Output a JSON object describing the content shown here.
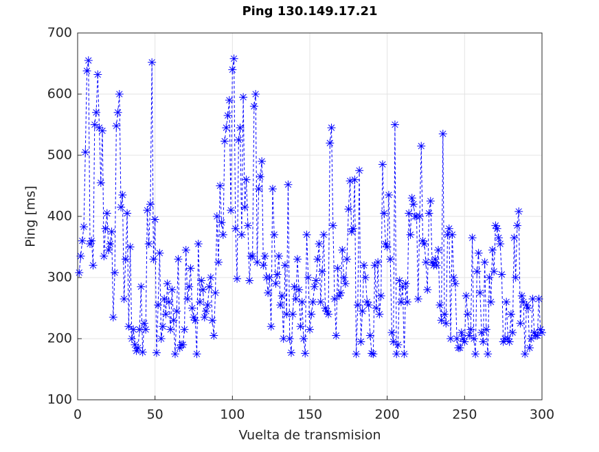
{
  "chart_data": {
    "type": "line",
    "title": "Ping 130.149.17.21",
    "xlabel": "Vuelta de transmision",
    "ylabel": "Ping [ms]",
    "xlim": [
      0,
      300
    ],
    "ylim": [
      100,
      700
    ],
    "xticks": [
      0,
      50,
      100,
      150,
      200,
      250,
      300
    ],
    "yticks": [
      100,
      200,
      300,
      400,
      500,
      600,
      700
    ],
    "grid": true,
    "series": [
      {
        "color": "#0000ff",
        "x": [
          1,
          2,
          3,
          4,
          5,
          6,
          7,
          8,
          9,
          10,
          11,
          12,
          13,
          14,
          15,
          16,
          17,
          18,
          19,
          20,
          21,
          22,
          23,
          24,
          25,
          26,
          27,
          28,
          29,
          30,
          31,
          32,
          33,
          34,
          35,
          36,
          37,
          38,
          39,
          40,
          41,
          42,
          43,
          44,
          45,
          46,
          47,
          48,
          49,
          50,
          51,
          52,
          53,
          54,
          55,
          56,
          57,
          58,
          59,
          60,
          61,
          62,
          63,
          64,
          65,
          66,
          67,
          68,
          69,
          70,
          71,
          72,
          73,
          74,
          75,
          76,
          77,
          78,
          79,
          80,
          81,
          82,
          83,
          84,
          85,
          86,
          87,
          88,
          89,
          90,
          91,
          92,
          93,
          94,
          95,
          96,
          97,
          98,
          99,
          100,
          101,
          102,
          103,
          104,
          105,
          106,
          107,
          108,
          109,
          110,
          111,
          112,
          113,
          114,
          115,
          116,
          117,
          118,
          119,
          120,
          121,
          122,
          123,
          124,
          125,
          126,
          127,
          128,
          129,
          130,
          131,
          132,
          133,
          134,
          135,
          136,
          137,
          138,
          139,
          140,
          141,
          142,
          143,
          144,
          145,
          146,
          147,
          148,
          149,
          150,
          151,
          152,
          153,
          154,
          155,
          156,
          157,
          158,
          159,
          160,
          161,
          162,
          163,
          164,
          165,
          166,
          167,
          168,
          169,
          170,
          171,
          172,
          173,
          174,
          175,
          176,
          177,
          178,
          179,
          180,
          181,
          182,
          183,
          184,
          185,
          186,
          187,
          188,
          189,
          190,
          191,
          192,
          193,
          194,
          195,
          196,
          197,
          198,
          199,
          200,
          201,
          202,
          203,
          204,
          205,
          206,
          207,
          208,
          209,
          210,
          211,
          212,
          213,
          214,
          215,
          216,
          217,
          218,
          219,
          220,
          221,
          222,
          223,
          224,
          225,
          226,
          227,
          228,
          229,
          230,
          231,
          232,
          233,
          234,
          235,
          236,
          237,
          238,
          239,
          240,
          241,
          242,
          243,
          244,
          245,
          246,
          247,
          248,
          249,
          250,
          251,
          252,
          253,
          254,
          255,
          256,
          257,
          258,
          259,
          260,
          261,
          262,
          263,
          264,
          265,
          266,
          267,
          268,
          269,
          270,
          271,
          272,
          273,
          274,
          275,
          276,
          277,
          278,
          279,
          280,
          281,
          282,
          283,
          284,
          285,
          286,
          287,
          288,
          289,
          290,
          291,
          292,
          293,
          294,
          295,
          296,
          297,
          298,
          299,
          300
        ],
        "values": [
          308,
          335,
          360,
          383,
          505,
          638,
          655,
          355,
          360,
          320,
          550,
          570,
          632,
          545,
          455,
          540,
          335,
          380,
          405,
          345,
          355,
          375,
          235,
          308,
          548,
          570,
          600,
          415,
          435,
          265,
          330,
          405,
          220,
          350,
          200,
          215,
          190,
          180,
          185,
          215,
          285,
          178,
          225,
          215,
          410,
          355,
          420,
          652,
          330,
          395,
          177,
          255,
          340,
          200,
          220,
          265,
          240,
          290,
          260,
          215,
          280,
          230,
          175,
          245,
          330,
          185,
          190,
          190,
          215,
          345,
          265,
          285,
          315,
          250,
          235,
          230,
          175,
          355,
          260,
          295,
          280,
          235,
          245,
          255,
          285,
          300,
          230,
          205,
          275,
          400,
          325,
          450,
          390,
          370,
          523,
          545,
          565,
          590,
          410,
          640,
          658,
          380,
          298,
          525,
          545,
          370,
          595,
          415,
          460,
          385,
          295,
          335,
          335,
          580,
          600,
          325,
          445,
          465,
          490,
          320,
          335,
          300,
          275,
          300,
          220,
          445,
          370,
          290,
          305,
          335,
          255,
          270,
          200,
          320,
          240,
          452,
          200,
          177,
          240,
          285,
          265,
          330,
          280,
          220,
          260,
          200,
          176,
          370,
          300,
          215,
          240,
          260,
          285,
          295,
          330,
          355,
          260,
          310,
          370,
          250,
          245,
          240,
          520,
          545,
          385,
          265,
          205,
          315,
          270,
          275,
          345,
          300,
          290,
          330,
          412,
          458,
          375,
          380,
          460,
          175,
          255,
          475,
          195,
          245,
          320,
          300,
          260,
          255,
          205,
          176,
          175,
          320,
          250,
          325,
          240,
          270,
          485,
          405,
          355,
          350,
          435,
          330,
          210,
          195,
          550,
          175,
          190,
          295,
          260,
          285,
          175,
          290,
          260,
          405,
          370,
          430,
          420,
          400,
          400,
          265,
          400,
          515,
          360,
          355,
          325,
          280,
          405,
          425,
          325,
          320,
          330,
          320,
          345,
          255,
          230,
          535,
          240,
          225,
          370,
          380,
          200,
          370,
          300,
          290,
          200,
          185,
          185,
          210,
          200,
          195,
          270,
          240,
          205,
          215,
          365,
          200,
          175,
          310,
          340,
          275,
          210,
          195,
          325,
          215,
          175,
          300,
          260,
          345,
          310,
          385,
          380,
          365,
          355,
          305,
          195,
          200,
          260,
          200,
          195,
          240,
          210,
          365,
          300,
          385,
          408,
          225,
          270,
          260,
          175,
          255,
          250,
          185,
          200,
          265,
          210,
          205,
          205,
          265,
          215,
          210
        ]
      }
    ]
  }
}
